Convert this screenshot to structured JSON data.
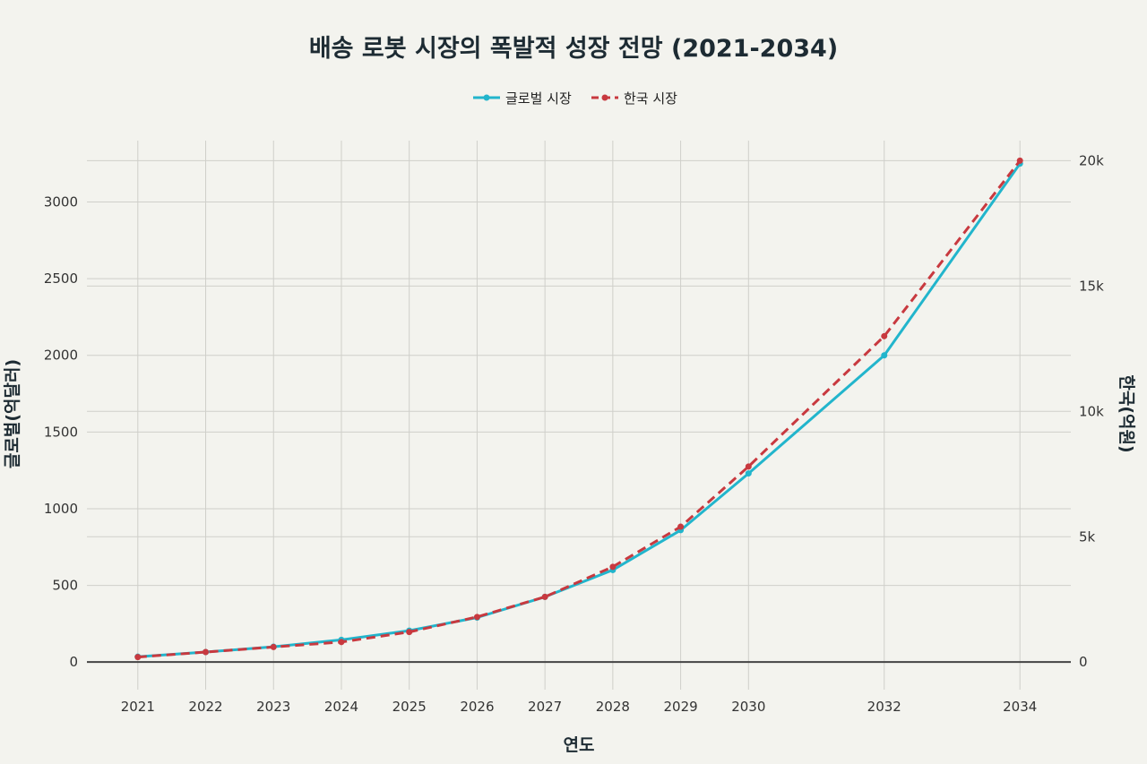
{
  "chart_data": {
    "type": "line",
    "title": "배송 로봇 시장의 폭발적 성장 전망 (2021-2034)",
    "xlabel": "연도",
    "ylabel_left": "글로벌(억달러)",
    "ylabel_right": "한국(억원)",
    "x": [
      2021,
      2022,
      2023,
      2024,
      2025,
      2026,
      2027,
      2028,
      2029,
      2030,
      2032,
      2034
    ],
    "x_range": [
      2020.25,
      2034.75
    ],
    "y_left_ticks": [
      0,
      500,
      1000,
      1500,
      2000,
      2500,
      3000
    ],
    "y_left_range": [
      -180,
      3400
    ],
    "y_right_ticks": [
      0,
      5000,
      10000,
      15000,
      20000
    ],
    "y_right_tick_labels": [
      "0",
      "5k",
      "10k",
      "15k",
      "20k"
    ],
    "y_right_range": [
      -1100,
      20800
    ],
    "legend_position": "top-center",
    "series": [
      {
        "name": "글로벌 시장",
        "axis": "left",
        "color": "#22b5cc",
        "dash": "solid",
        "values": [
          35,
          65,
          100,
          145,
          205,
          290,
          425,
          600,
          860,
          1230,
          2000,
          3250
        ]
      },
      {
        "name": "한국 시장",
        "axis": "right",
        "color": "#c8393f",
        "dash": "dash",
        "values": [
          200,
          400,
          600,
          800,
          1200,
          1800,
          2600,
          3800,
          5400,
          7800,
          13000,
          20000
        ]
      }
    ]
  }
}
